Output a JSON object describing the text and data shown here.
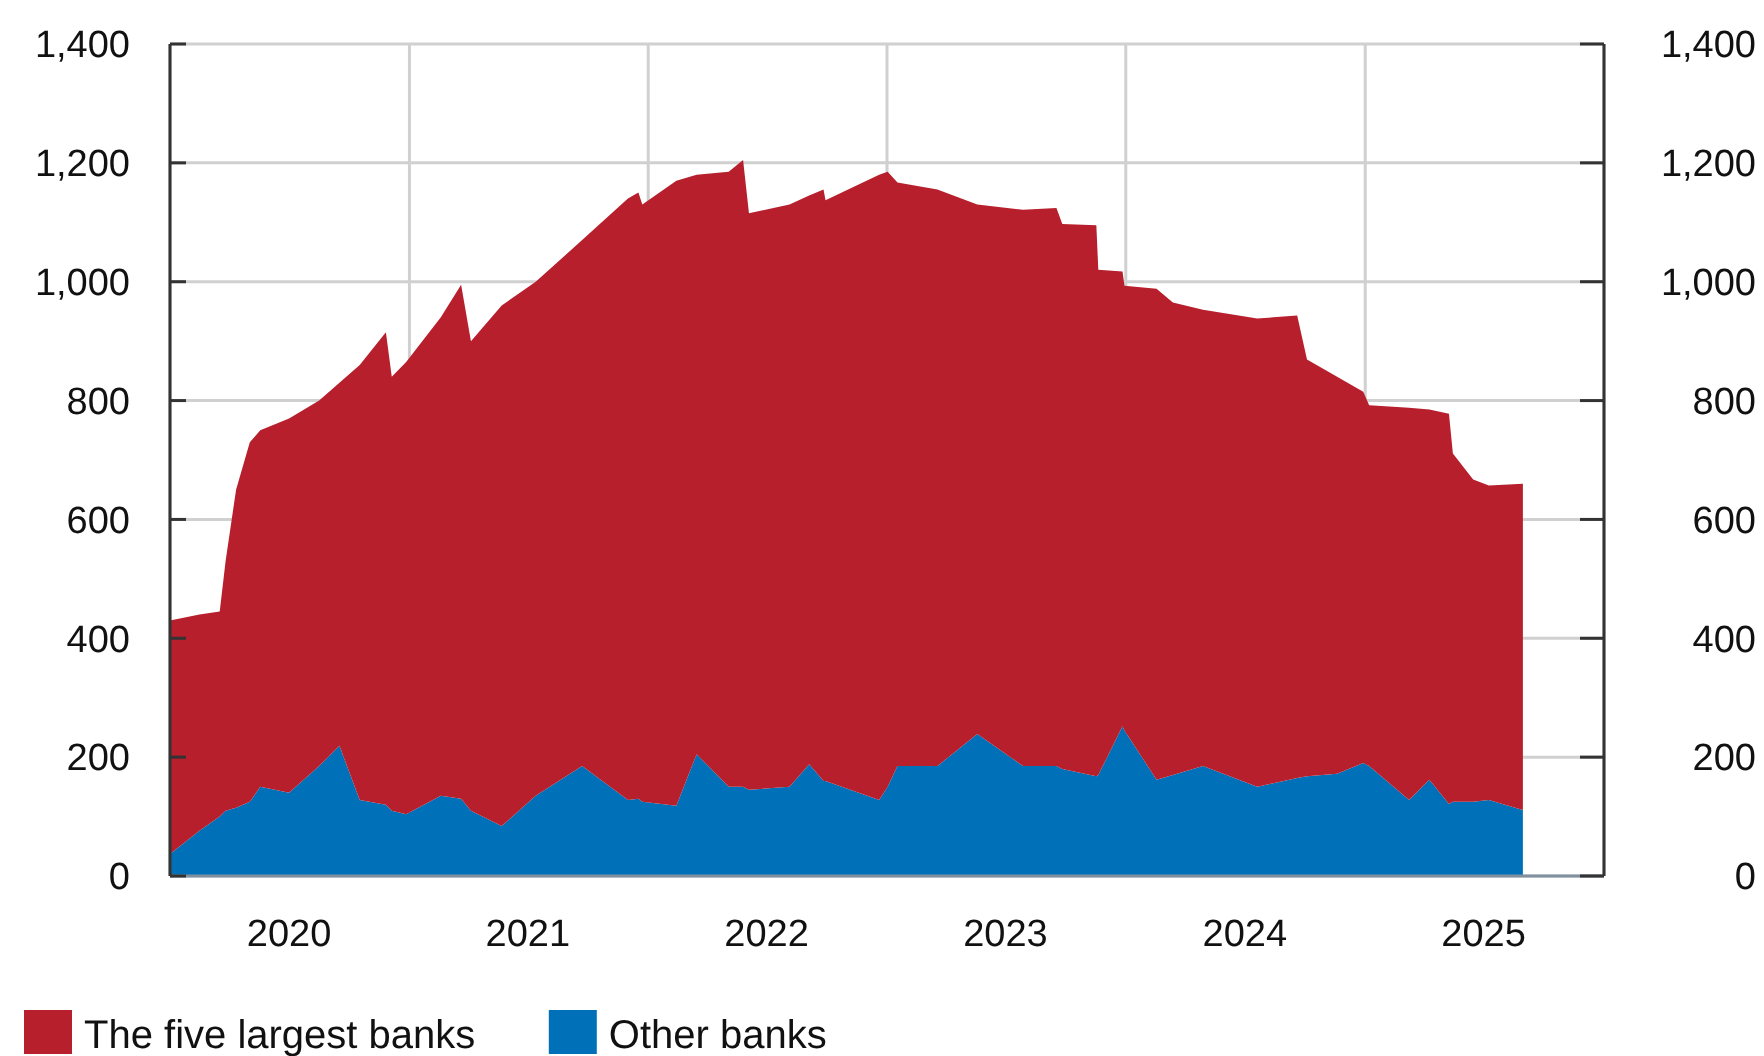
{
  "chart_data": {
    "type": "area",
    "stacked": true,
    "x": [
      "2020-01-01",
      "2020-02-15",
      "2020-03-17",
      "2020-03-26",
      "2020-04-11",
      "2020-05-02",
      "2020-05-18",
      "2020-07-01",
      "2020-08-16",
      "2020-09-16",
      "2020-10-17",
      "2020-11-26",
      "2020-12-05",
      "2020-12-27",
      "2021-02-18",
      "2021-03-21",
      "2021-04-05",
      "2021-05-22",
      "2021-07-13",
      "2021-09-22",
      "2021-12-01",
      "2021-12-17",
      "2021-12-23",
      "2022-02-13",
      "2022-03-16",
      "2022-05-04",
      "2022-05-26",
      "2022-06-04",
      "2022-08-05",
      "2022-09-04",
      "2022-09-26",
      "2022-09-29",
      "2022-12-20",
      "2023-01-02",
      "2023-01-17",
      "2023-03-19",
      "2023-05-19",
      "2023-07-28",
      "2023-09-17",
      "2023-09-26",
      "2023-11-17",
      "2023-11-20",
      "2023-12-27",
      "2023-12-30",
      "2024-02-17",
      "2024-03-13",
      "2024-04-28",
      "2024-07-20",
      "2024-09-19",
      "2024-10-04",
      "2024-11-19",
      "2024-12-29",
      "2025-01-07",
      "2025-03-09",
      "2025-04-09",
      "2025-05-09",
      "2025-05-15",
      "2025-06-15",
      "2025-07-09",
      "2025-08-30"
    ],
    "series": [
      {
        "name": "Other banks",
        "color": "#0071b8",
        "values": [
          37,
          76,
          100,
          110,
          115,
          125,
          150,
          140,
          185,
          219,
          128,
          120,
          110,
          104,
          135,
          130,
          110,
          84,
          135,
          185,
          128,
          130,
          125,
          118,
          205,
          150,
          150,
          145,
          150,
          188,
          160,
          160,
          128,
          150,
          185,
          185,
          239,
          185,
          185,
          180,
          168,
          170,
          252,
          245,
          162,
          170,
          185,
          150,
          165,
          168,
          172,
          190,
          185,
          128,
          162,
          121,
          125,
          125,
          128,
          111
        ]
      },
      {
        "name": "The five largest banks",
        "color": "#b71f2c",
        "values": [
          393,
          364,
          345,
          420,
          535,
          605,
          600,
          630,
          615,
          611,
          732,
          795,
          730,
          761,
          805,
          865,
          790,
          876,
          865,
          885,
          1012,
          1020,
          1005,
          1052,
          975,
          1035,
          1055,
          970,
          980,
          957,
          995,
          977,
          1052,
          1035,
          982,
          970,
          891,
          936,
          939,
          917,
          927,
          850,
          765,
          748,
          826,
          795,
          768,
          788,
          778,
          701,
          668,
          625,
          607,
          660,
          623,
          657,
          586,
          542,
          529,
          549
        ]
      }
    ],
    "xlim": [
      "2020-01-01",
      "2026-01-01"
    ],
    "xticks": [
      {
        "value": "2020-01-01",
        "label": null
      },
      {
        "value": "2020-07-01",
        "label": "2020"
      },
      {
        "value": "2021-01-01",
        "label": null
      },
      {
        "value": "2021-07-01",
        "label": "2021"
      },
      {
        "value": "2022-01-01",
        "label": null
      },
      {
        "value": "2022-07-01",
        "label": "2022"
      },
      {
        "value": "2023-01-01",
        "label": null
      },
      {
        "value": "2023-07-01",
        "label": "2023"
      },
      {
        "value": "2024-01-01",
        "label": null
      },
      {
        "value": "2024-07-01",
        "label": "2024"
      },
      {
        "value": "2025-01-01",
        "label": null
      },
      {
        "value": "2025-07-01",
        "label": "2025"
      },
      {
        "value": "2026-01-01",
        "label": null
      }
    ],
    "ylim": [
      0,
      1400
    ],
    "yticks": [
      0,
      200,
      400,
      600,
      800,
      {
        "value": 1000,
        "label": "1,000"
      },
      {
        "value": 1200,
        "label": "1,200"
      },
      {
        "value": 1400,
        "label": "1,400"
      }
    ],
    "y2lim": [
      0,
      1400
    ],
    "y2ticks": [
      0,
      200,
      400,
      600,
      800,
      {
        "value": 1000,
        "label": "1,000"
      },
      {
        "value": 1200,
        "label": "1,200"
      },
      {
        "value": 1400,
        "label": "1,400"
      }
    ],
    "grid": true,
    "legend": "bottom left"
  }
}
